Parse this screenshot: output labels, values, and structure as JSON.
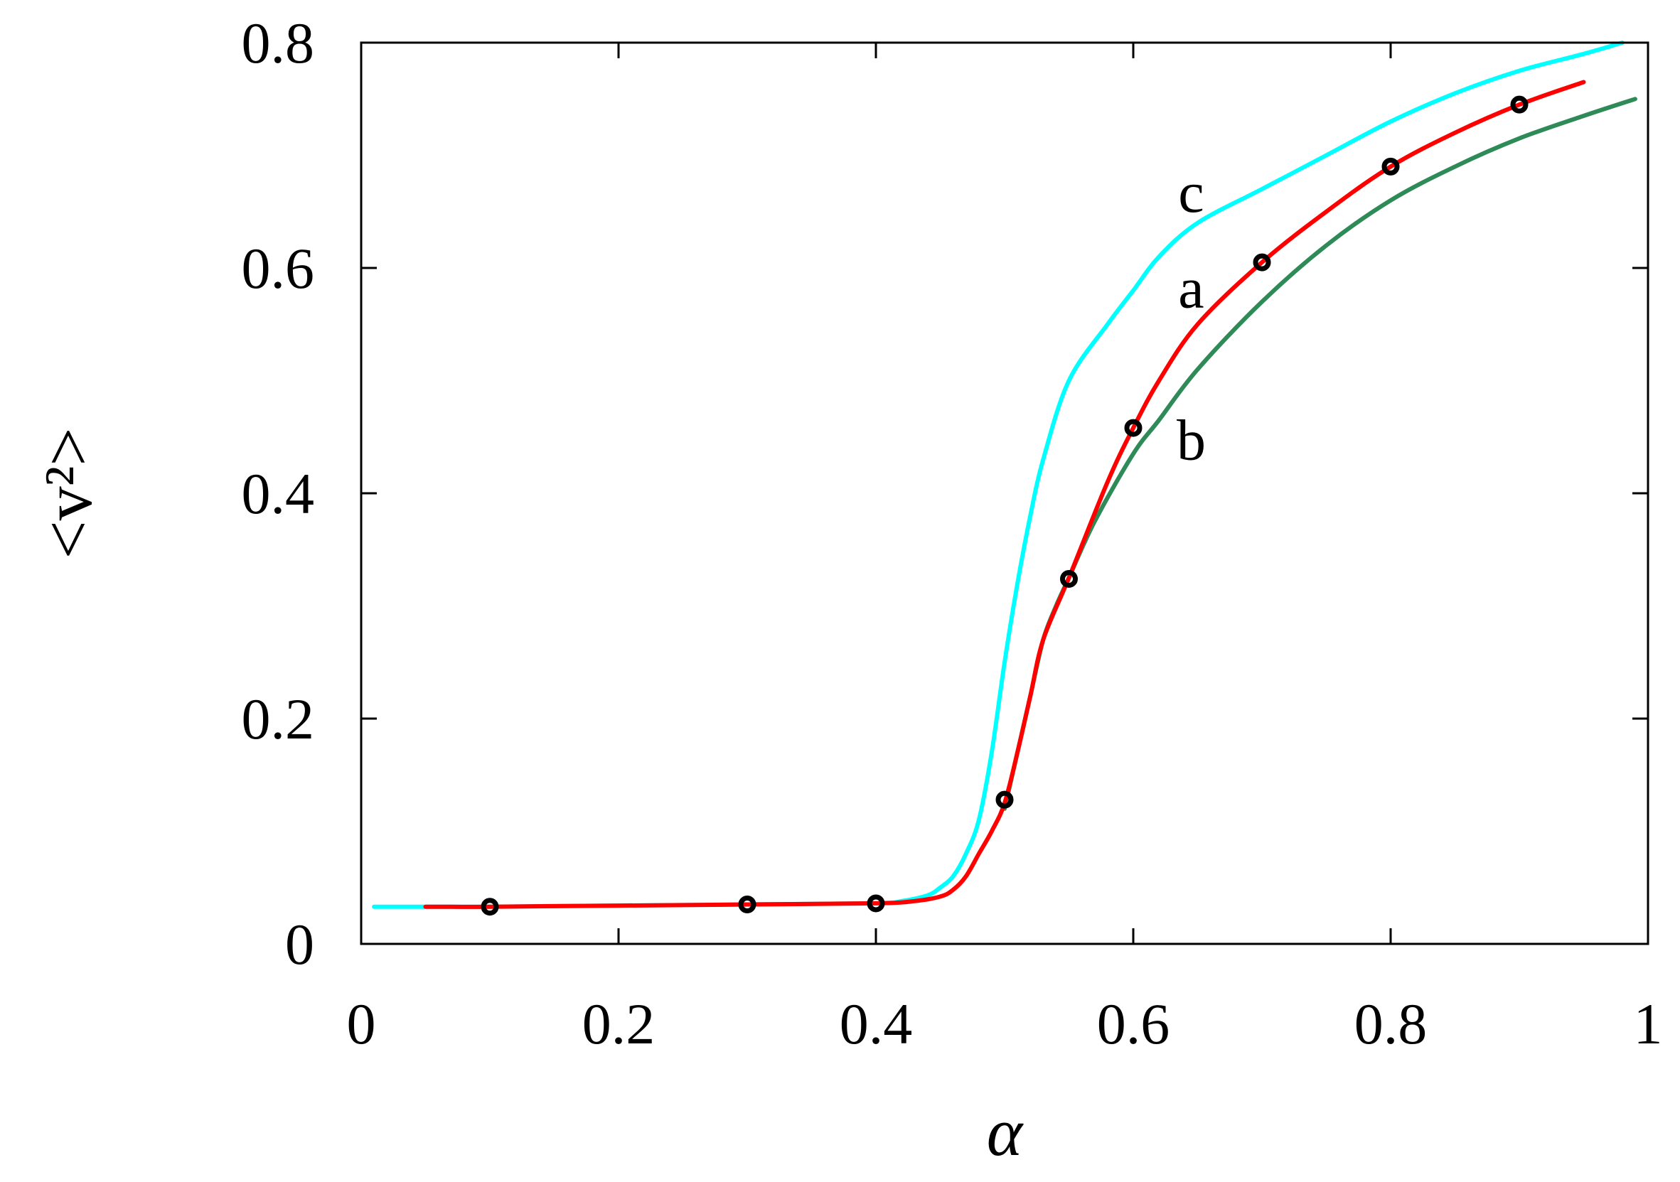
{
  "chart_data": {
    "type": "line",
    "xlabel": "α",
    "ylabel": "<v²>",
    "xlim": [
      0,
      1
    ],
    "ylim": [
      0,
      0.8
    ],
    "xticks": [
      "0",
      "0.2",
      "0.4",
      "0.6",
      "0.8",
      "1"
    ],
    "yticks": [
      "0",
      "0.2",
      "0.4",
      "0.6",
      "0.8"
    ],
    "grid": false,
    "series": [
      {
        "name": "c",
        "color": "#00ffff",
        "x": [
          0.01,
          0.05,
          0.1,
          0.2,
          0.3,
          0.4,
          0.42,
          0.44,
          0.45,
          0.46,
          0.47,
          0.48,
          0.49,
          0.5,
          0.51,
          0.52,
          0.53,
          0.55,
          0.58,
          0.6,
          0.62,
          0.65,
          0.7,
          0.75,
          0.8,
          0.85,
          0.9,
          0.95,
          0.98
        ],
        "y": [
          0.033,
          0.033,
          0.033,
          0.034,
          0.035,
          0.036,
          0.038,
          0.043,
          0.05,
          0.06,
          0.08,
          0.11,
          0.17,
          0.25,
          0.32,
          0.38,
          0.43,
          0.5,
          0.55,
          0.58,
          0.61,
          0.64,
          0.67,
          0.7,
          0.73,
          0.755,
          0.775,
          0.79,
          0.8
        ]
      },
      {
        "name": "b",
        "color": "#2e8b57",
        "x": [
          0.5,
          0.51,
          0.52,
          0.53,
          0.54,
          0.55,
          0.57,
          0.6,
          0.62,
          0.65,
          0.7,
          0.75,
          0.8,
          0.85,
          0.9,
          0.95,
          0.99
        ],
        "y": [
          0.12,
          0.17,
          0.22,
          0.27,
          0.3,
          0.325,
          0.375,
          0.435,
          0.465,
          0.51,
          0.57,
          0.62,
          0.66,
          0.69,
          0.715,
          0.735,
          0.75
        ]
      },
      {
        "name": "a",
        "color": "#ff0000",
        "x": [
          0.05,
          0.1,
          0.2,
          0.3,
          0.4,
          0.43,
          0.45,
          0.46,
          0.47,
          0.48,
          0.49,
          0.5,
          0.51,
          0.52,
          0.53,
          0.55,
          0.58,
          0.6,
          0.62,
          0.65,
          0.7,
          0.75,
          0.8,
          0.85,
          0.9,
          0.95
        ],
        "y": [
          0.033,
          0.033,
          0.034,
          0.035,
          0.036,
          0.038,
          0.042,
          0.048,
          0.06,
          0.08,
          0.1,
          0.125,
          0.17,
          0.22,
          0.27,
          0.325,
          0.41,
          0.458,
          0.5,
          0.55,
          0.605,
          0.65,
          0.69,
          0.72,
          0.745,
          0.765
        ]
      }
    ],
    "points": {
      "name": "markers",
      "color": "#000000",
      "x": [
        0.1,
        0.3,
        0.4,
        0.5,
        0.55,
        0.6,
        0.7,
        0.8,
        0.9
      ],
      "y": [
        0.033,
        0.035,
        0.036,
        0.128,
        0.324,
        0.458,
        0.605,
        0.69,
        0.745
      ]
    },
    "annotations": [
      {
        "text": "c",
        "x": 0.645,
        "y": 0.65
      },
      {
        "text": "a",
        "x": 0.645,
        "y": 0.565
      },
      {
        "text": "b",
        "x": 0.645,
        "y": 0.43
      }
    ]
  }
}
